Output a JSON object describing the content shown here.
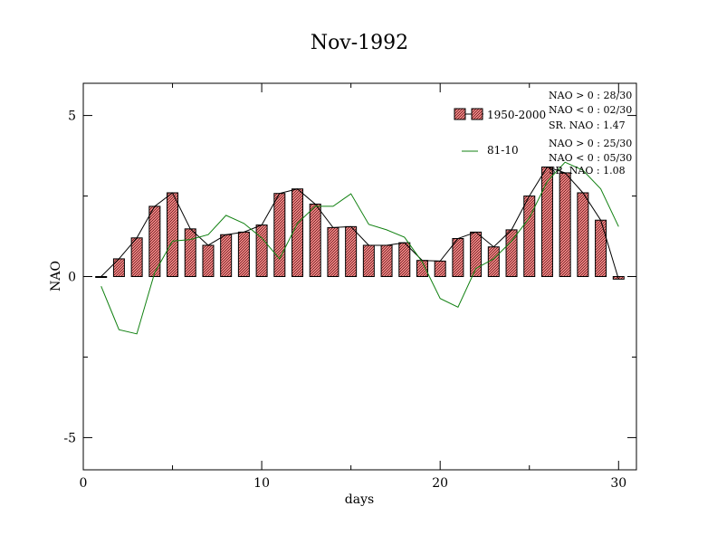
{
  "chart_data": {
    "type": "bar",
    "title": "Nov-1992",
    "xlabel": "days",
    "ylabel": "NAO",
    "xlim": [
      0,
      31
    ],
    "ylim": [
      -6,
      6
    ],
    "xticks": [
      0,
      10,
      20,
      30
    ],
    "xtick_labels": [
      "0",
      "10",
      "20",
      "30"
    ],
    "yticks": [
      -5,
      0,
      5
    ],
    "ytick_labels": [
      "-5",
      "0",
      "5"
    ],
    "grid": false,
    "x": [
      1,
      2,
      3,
      4,
      5,
      6,
      7,
      8,
      9,
      10,
      11,
      12,
      13,
      14,
      15,
      16,
      17,
      18,
      19,
      20,
      21,
      22,
      23,
      24,
      25,
      26,
      27,
      28,
      29,
      30
    ],
    "series": [
      {
        "name": "1950-2000",
        "kind": "bar",
        "color": "#e88080",
        "values": [
          0.0,
          0.55,
          1.2,
          2.18,
          2.6,
          1.48,
          0.97,
          1.3,
          1.38,
          1.6,
          2.58,
          2.72,
          2.25,
          1.52,
          1.55,
          0.97,
          0.97,
          1.05,
          0.5,
          0.48,
          1.18,
          1.38,
          0.92,
          1.45,
          2.5,
          3.4,
          3.22,
          2.6,
          1.75,
          -0.08
        ]
      },
      {
        "name": "81-10",
        "kind": "line",
        "color": "#108010",
        "values": [
          -0.3,
          -1.65,
          -1.78,
          0.12,
          1.1,
          1.15,
          1.3,
          1.9,
          1.65,
          1.2,
          0.55,
          1.65,
          2.18,
          2.18,
          2.57,
          1.62,
          1.45,
          1.22,
          0.45,
          -0.68,
          -0.95,
          0.25,
          0.55,
          1.1,
          1.82,
          2.95,
          3.55,
          3.3,
          2.72,
          1.55
        ]
      }
    ],
    "annotations": {
      "group1": [
        "NAO > 0 : 28/30",
        "NAO < 0 : 02/30",
        "SR. NAO :  1.47"
      ],
      "group2": [
        "NAO > 0 : 25/30",
        "NAO < 0 : 05/30",
        "SR. NAO :  1.08"
      ]
    },
    "legend_position": "top-right"
  }
}
